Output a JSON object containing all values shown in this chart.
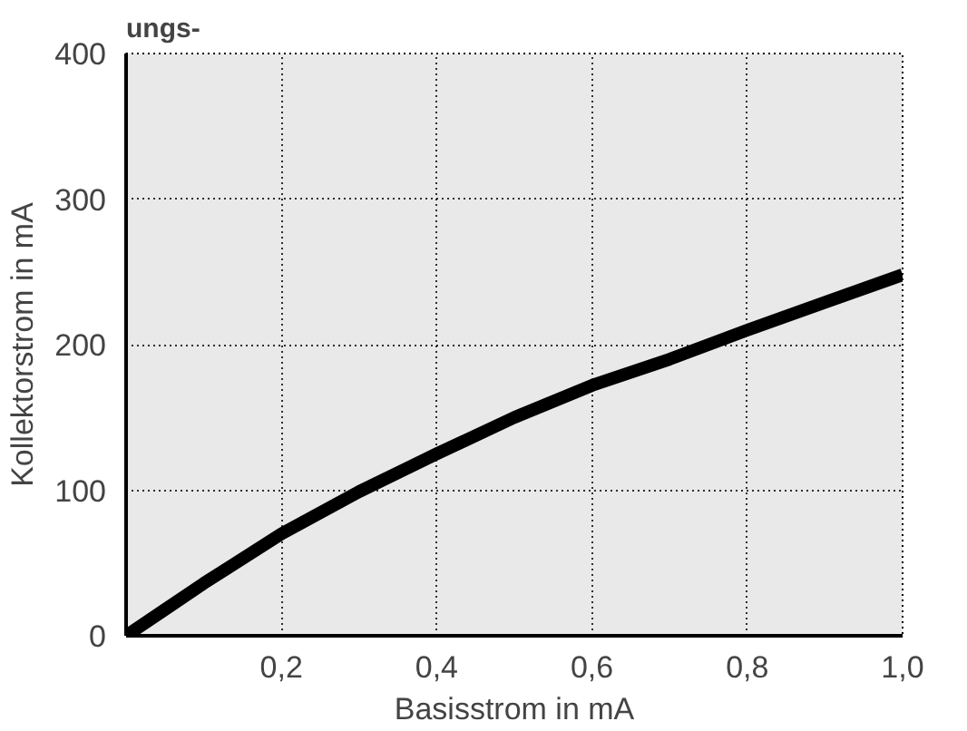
{
  "chart_data": {
    "type": "line",
    "title": "ungs-",
    "xlabel": "Basisstrom in mA",
    "ylabel": "Kollektorstrom in mA",
    "x": [
      0,
      0.05,
      0.1,
      0.2,
      0.3,
      0.4,
      0.5,
      0.6,
      0.7,
      0.8,
      0.9,
      1.0
    ],
    "series": [
      {
        "color": "#000000",
        "values": [
          0,
          18,
          36,
          70,
          99,
          125,
          150,
          172,
          190,
          210,
          229,
          248
        ]
      }
    ],
    "xlim": [
      0,
      1.0
    ],
    "ylim": [
      0,
      400
    ],
    "xticks": [
      {
        "value": 0,
        "label": null
      },
      {
        "value": 0.2,
        "label": "0,2"
      },
      {
        "value": 0.4,
        "label": "0,4"
      },
      {
        "value": 0.6,
        "label": "0,6"
      },
      {
        "value": 0.8,
        "label": "0,8"
      },
      {
        "value": 1.0,
        "label": "1,0"
      }
    ],
    "yticks": [
      0,
      100,
      200,
      300,
      400
    ],
    "grid": true,
    "marker": "none",
    "line_style": "solid"
  }
}
